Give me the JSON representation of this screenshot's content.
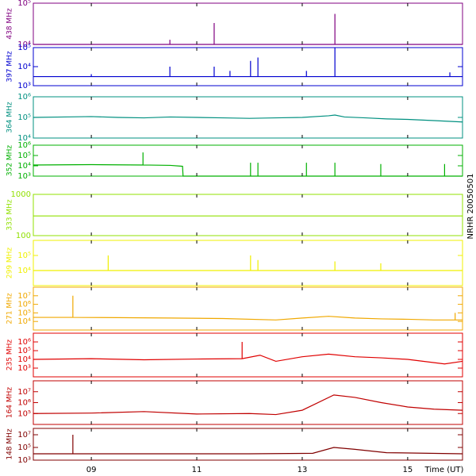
{
  "side_label": "NRHR 20050501",
  "x_label": "Time (UT)",
  "chart_data": [
    {
      "type": "line",
      "title": "438 MHz",
      "color": "#800080",
      "log_scale": true,
      "xlim": [
        7.9,
        16.04
      ],
      "ylim": [
        10000,
        100000
      ],
      "yticks": [
        {
          "value": 10000,
          "label": "10⁴"
        },
        {
          "value": 100000,
          "label": "10⁵"
        }
      ],
      "x": [
        7.9,
        10.49,
        10.49,
        10.49,
        11.33,
        11.33,
        11.33,
        13.62,
        13.62,
        13.62,
        16.04
      ],
      "values": [
        10000,
        10000,
        13000,
        10000,
        10000,
        33000,
        10000,
        10000,
        55000,
        10000,
        10000
      ]
    },
    {
      "type": "line",
      "title": "397 MHz",
      "color": "#0000d0",
      "log_scale": true,
      "xlim": [
        7.9,
        16.04
      ],
      "ylim": [
        1000,
        100000
      ],
      "yticks": [
        {
          "value": 1000,
          "label": "10³"
        },
        {
          "value": 10000,
          "label": "10⁴"
        },
        {
          "value": 100000,
          "label": "10⁵"
        }
      ],
      "x": [
        7.9,
        9.0,
        9.0,
        9.0,
        10.49,
        10.49,
        10.49,
        11.33,
        11.33,
        11.33,
        11.63,
        11.63,
        11.63,
        12.02,
        12.02,
        12.02,
        12.16,
        12.16,
        12.16,
        13.08,
        13.08,
        13.08,
        13.62,
        13.62,
        13.62,
        15.8,
        15.8,
        15.8,
        16.04
      ],
      "values": [
        3000,
        3000,
        4000,
        3000,
        3000,
        10000,
        3000,
        3000,
        10000,
        3000,
        3000,
        6000,
        3000,
        3000,
        20000,
        3000,
        3000,
        30000,
        3000,
        3000,
        6000,
        3000,
        3000,
        100000,
        3000,
        3000,
        5000,
        3000,
        3000
      ]
    },
    {
      "type": "line",
      "title": "364 MHz",
      "color": "#009080",
      "log_scale": true,
      "xlim": [
        7.9,
        16.04
      ],
      "ylim": [
        10000,
        1000000
      ],
      "yticks": [
        {
          "value": 10000,
          "label": "10⁴"
        },
        {
          "value": 100000,
          "label": "10⁵"
        },
        {
          "value": 1000000,
          "label": "10⁶"
        }
      ],
      "x": [
        7.9,
        8.5,
        9.0,
        9.5,
        10.0,
        10.5,
        11.0,
        11.5,
        12.0,
        12.5,
        13.0,
        13.5,
        13.62,
        13.8,
        14.2,
        14.6,
        15.0,
        15.5,
        16.04
      ],
      "values": [
        100000,
        105000,
        110000,
        100000,
        95000,
        105000,
        100000,
        95000,
        90000,
        95000,
        100000,
        120000,
        130000,
        105000,
        95000,
        85000,
        80000,
        70000,
        60000
      ]
    },
    {
      "type": "line",
      "title": "352 MHz",
      "color": "#00b000",
      "log_scale": true,
      "xlim": [
        7.9,
        16.04
      ],
      "ylim": [
        1000,
        1000000
      ],
      "yticks": [
        {
          "value": 1000,
          "label": "10³"
        },
        {
          "value": 10000,
          "label": "10⁴"
        },
        {
          "value": 100000,
          "label": "10⁵"
        },
        {
          "value": 1000000,
          "label": "10⁶"
        }
      ],
      "x": [
        7.9,
        9.0,
        9.98,
        9.98,
        9.98,
        10.5,
        10.73,
        10.74,
        12.02,
        12.02,
        12.02,
        12.16,
        12.16,
        12.16,
        13.08,
        13.08,
        13.08,
        13.62,
        13.62,
        13.62,
        14.49,
        14.49,
        14.49,
        15.7,
        15.7,
        15.7,
        16.04
      ],
      "values": [
        12000,
        13000,
        12000,
        200000,
        12000,
        11000,
        9000,
        1000,
        1000,
        20000,
        1000,
        1000,
        20000,
        1000,
        1000,
        20000,
        1000,
        1000,
        20000,
        1000,
        1000,
        15000,
        1000,
        1000,
        15000,
        1000,
        1000
      ]
    },
    {
      "type": "line",
      "title": "333 MHz",
      "color": "#90e000",
      "log_scale": true,
      "xlim": [
        7.9,
        16.04
      ],
      "ylim": [
        100,
        1000
      ],
      "yticks": [
        100,
        1000
      ],
      "x": [
        7.9,
        16.04
      ],
      "values": [
        300,
        300
      ]
    },
    {
      "type": "line",
      "title": "299 MHz",
      "color": "#f0f000",
      "log_scale": true,
      "xlim": [
        7.9,
        16.04
      ],
      "ylim": [
        1000,
        1000000
      ],
      "yticks": [
        {
          "value": 10000,
          "label": "10⁴"
        },
        {
          "value": 100000,
          "label": "10⁵"
        }
      ],
      "x": [
        7.9,
        9.32,
        9.32,
        9.32,
        12.02,
        12.02,
        12.02,
        12.16,
        12.16,
        12.16,
        13.62,
        13.62,
        13.62,
        14.49,
        14.49,
        14.49,
        16.04
      ],
      "values": [
        10000,
        10000,
        100000,
        10000,
        10000,
        100000,
        10000,
        10000,
        50000,
        10000,
        10000,
        40000,
        10000,
        10000,
        30000,
        10000,
        10000
      ]
    },
    {
      "type": "line",
      "title": "271 MHz",
      "color": "#f0a800",
      "log_scale": true,
      "xlim": [
        7.9,
        16.04
      ],
      "ylim": [
        1000,
        100000000
      ],
      "yticks": [
        {
          "value": 10000,
          "label": "10⁴"
        },
        {
          "value": 100000,
          "label": "10⁵"
        },
        {
          "value": 1000000,
          "label": "10⁶"
        },
        {
          "value": 10000000,
          "label": "10⁷"
        }
      ],
      "x": [
        7.9,
        8.65,
        8.65,
        8.65,
        9.5,
        10.5,
        11.5,
        12.5,
        13.0,
        13.5,
        14.0,
        14.5,
        15.0,
        15.5,
        15.9,
        15.9,
        15.9,
        16.04
      ],
      "values": [
        30000,
        30000,
        10000000,
        30000,
        28000,
        25000,
        22000,
        15000,
        25000,
        40000,
        25000,
        20000,
        18000,
        15000,
        15000,
        100000,
        15000,
        15000
      ]
    },
    {
      "type": "line",
      "title": "235 MHz",
      "color": "#e00000",
      "log_scale": true,
      "xlim": [
        7.9,
        16.04
      ],
      "ylim": [
        100,
        10000000
      ],
      "yticks": [
        {
          "value": 1000,
          "label": "10³"
        },
        {
          "value": 10000,
          "label": "10⁴"
        },
        {
          "value": 100000,
          "label": "10⁵"
        },
        {
          "value": 1000000,
          "label": "10⁶"
        }
      ],
      "x": [
        7.9,
        9.0,
        10.0,
        11.0,
        11.86,
        11.86,
        11.86,
        12.2,
        12.5,
        13.0,
        13.5,
        14.0,
        14.5,
        15.0,
        15.7,
        16.04
      ],
      "values": [
        10000,
        12000,
        9000,
        11000,
        12000,
        1000000,
        12000,
        30000,
        6000,
        20000,
        40000,
        20000,
        15000,
        10000,
        3000,
        6000
      ]
    },
    {
      "type": "line",
      "title": "164 MHz",
      "color": "#c00000",
      "log_scale": true,
      "xlim": [
        7.9,
        16.04
      ],
      "ylim": [
        10000,
        100000000
      ],
      "yticks": [
        {
          "value": 100000,
          "label": "10⁵"
        },
        {
          "value": 1000000,
          "label": "10⁶"
        },
        {
          "value": 10000000,
          "label": "10⁷"
        }
      ],
      "x": [
        7.9,
        9.0,
        10.0,
        11.0,
        12.0,
        12.5,
        13.0,
        13.6,
        14.0,
        14.5,
        15.0,
        15.5,
        16.04
      ],
      "values": [
        100000,
        110000,
        150000,
        90000,
        100000,
        80000,
        200000,
        5000000,
        3000000,
        1000000,
        400000,
        250000,
        200000
      ]
    },
    {
      "type": "line",
      "title": "148 MHz",
      "color": "#800000",
      "log_scale": true,
      "xlim": [
        7.9,
        16.04
      ],
      "ylim": [
        1000,
        100000000
      ],
      "yticks": [
        {
          "value": 1000,
          "label": "10³"
        },
        {
          "value": 100000,
          "label": "10⁵"
        },
        {
          "value": 10000000,
          "label": "10⁷"
        }
      ],
      "xticks": [
        {
          "value": 9,
          "label": "09"
        },
        {
          "value": 11,
          "label": "11"
        },
        {
          "value": 13,
          "label": "13"
        },
        {
          "value": 15,
          "label": "15"
        }
      ],
      "x": [
        7.9,
        8.65,
        8.65,
        8.65,
        12.0,
        13.2,
        13.6,
        14.0,
        14.6,
        16.04
      ],
      "values": [
        10000,
        10000,
        10000000,
        10000,
        10000,
        12000,
        100000,
        50000,
        15000,
        10000
      ]
    }
  ]
}
